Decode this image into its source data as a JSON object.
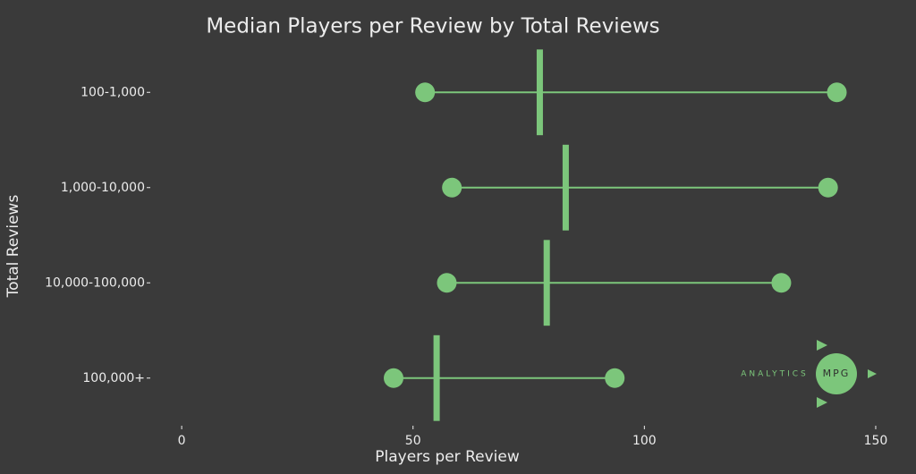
{
  "chart_data": {
    "type": "dumbbell",
    "title": "Median Players per Review by Total Reviews",
    "x_label": "Players per Review",
    "y_label": "Total Reviews",
    "categories": [
      "100-1,000",
      "1,000-10,000",
      "10,000-100,000",
      "100,000+"
    ],
    "low_values": [
      52.6,
      58.4,
      57.3,
      45.8
    ],
    "median_values": [
      77.4,
      83.0,
      78.9,
      55.1
    ],
    "high_values": [
      141.6,
      139.7,
      129.6,
      93.6
    ],
    "color": "#7cc67b",
    "xlim": [
      -6.4,
      156
    ],
    "xticks": [
      0,
      50,
      100,
      150
    ],
    "grid": false,
    "logo": {
      "left": "ANALYTICS",
      "mark": "MPG"
    }
  }
}
